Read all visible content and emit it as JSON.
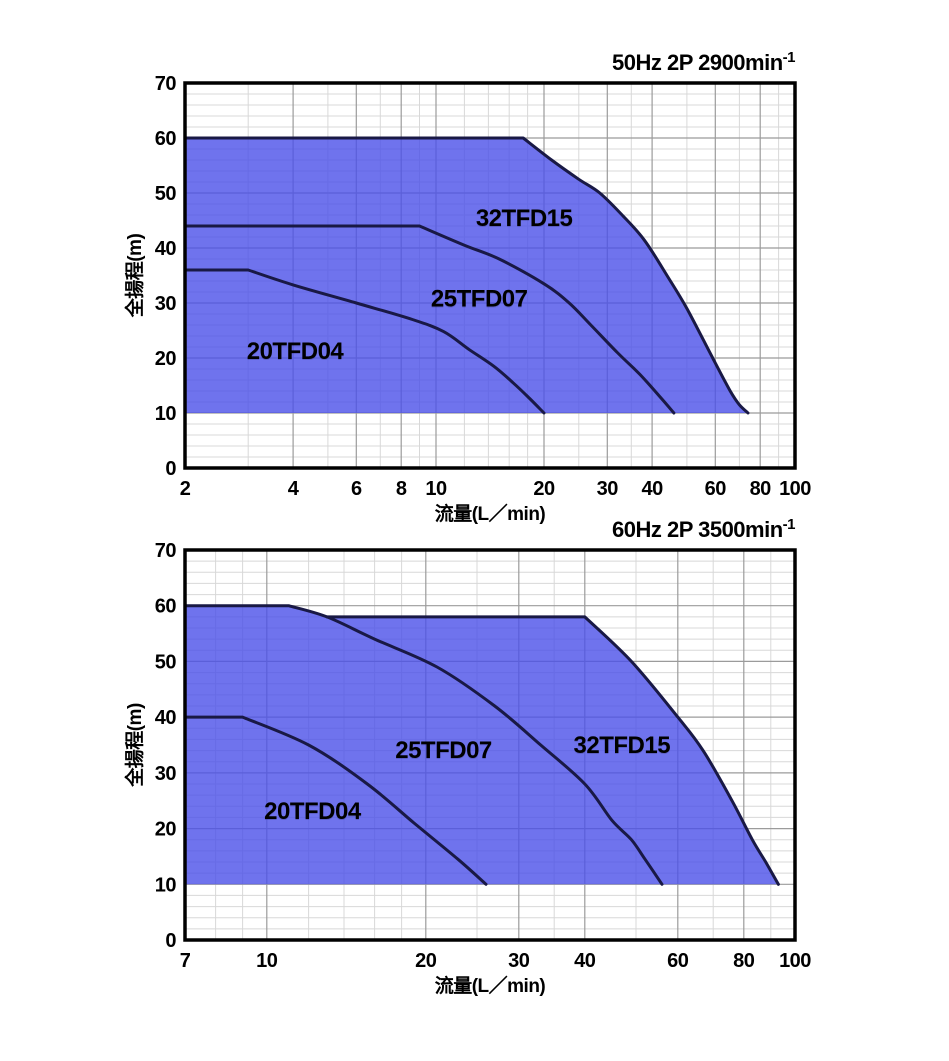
{
  "style": {
    "background": "#ffffff",
    "area_fill": "#4b50e8",
    "area_fill_opacity": 0.8,
    "curve_color": "#191945",
    "axis_color": "#000000",
    "major_grid_color": "#9b9b9b",
    "minor_grid_color": "#d8d8d8",
    "tick_text_color": "#000000",
    "series_label_color": "#ffffff"
  },
  "chart_data": [
    {
      "type": "area",
      "title": "50Hz 2P 2900min",
      "title_sup": "-1",
      "xlabel": "流量(L／min)",
      "ylabel": "全揚程(m)",
      "x_scale": "log",
      "xlim": [
        2,
        100
      ],
      "ylim": [
        0,
        70
      ],
      "x_ticks": [
        2,
        4,
        6,
        8,
        10,
        20,
        30,
        40,
        60,
        80,
        100
      ],
      "x_minor_gridlines": [
        3,
        5,
        7,
        9,
        12,
        14,
        16,
        18,
        25,
        35,
        50,
        70,
        90
      ],
      "y_ticks": [
        0,
        10,
        20,
        30,
        40,
        50,
        60,
        70
      ],
      "y_minor_step": 2,
      "y_tick_step": 10,
      "min_head": 10,
      "fill_region": {
        "straight_until": 1,
        "points": [
          [
            2,
            60
          ],
          [
            17.5,
            60
          ],
          [
            21,
            56
          ],
          [
            25,
            52.5
          ],
          [
            28.6,
            50
          ],
          [
            33,
            46
          ],
          [
            38,
            41.5
          ],
          [
            44,
            35
          ],
          [
            50,
            29
          ],
          [
            59,
            20
          ],
          [
            66,
            14
          ],
          [
            70,
            11.5
          ],
          [
            74,
            10
          ]
        ]
      },
      "series": [
        {
          "name": "32TFD15",
          "label_at": [
            17.6,
            45.6
          ],
          "straight_until": 1,
          "points": [
            [
              2,
              60
            ],
            [
              17.5,
              60
            ],
            [
              21,
              56
            ],
            [
              25,
              52.5
            ],
            [
              28.6,
              50
            ],
            [
              33,
              46
            ],
            [
              38,
              41.5
            ],
            [
              44,
              35
            ],
            [
              50,
              29
            ],
            [
              59,
              20
            ],
            [
              66,
              14
            ],
            [
              70,
              11.5
            ],
            [
              74,
              10
            ]
          ]
        },
        {
          "name": "25TFD07",
          "label_at": [
            13.2,
            31
          ],
          "straight_until": 1,
          "points": [
            [
              2,
              44
            ],
            [
              9,
              44
            ],
            [
              12,
              40.5
            ],
            [
              15,
              38
            ],
            [
              20,
              33.5
            ],
            [
              23.5,
              30
            ],
            [
              27,
              26
            ],
            [
              32,
              21
            ],
            [
              37,
              17
            ],
            [
              42,
              13
            ],
            [
              46,
              10
            ]
          ]
        },
        {
          "name": "20TFD04",
          "label_at": [
            4.05,
            21.5
          ],
          "straight_until": 1,
          "points": [
            [
              2,
              36
            ],
            [
              3,
              36
            ],
            [
              4,
              33.3
            ],
            [
              6,
              30
            ],
            [
              8.6,
              27
            ],
            [
              10.5,
              24.8
            ],
            [
              12.4,
              21.5
            ],
            [
              14.5,
              18.5
            ],
            [
              16.4,
              15.5
            ],
            [
              18,
              13
            ],
            [
              20,
              10
            ]
          ]
        }
      ]
    },
    {
      "type": "area",
      "title": "60Hz 2P 3500min",
      "title_sup": "-1",
      "xlabel": "流量(L／min)",
      "ylabel": "全揚程(m)",
      "x_scale": "log",
      "xlim": [
        7,
        100
      ],
      "ylim": [
        0,
        70
      ],
      "x_ticks": [
        7,
        10,
        20,
        30,
        40,
        60,
        80,
        100
      ],
      "x_minor_gridlines": [
        8,
        9,
        12,
        14,
        16,
        18,
        25,
        35,
        50,
        70,
        90
      ],
      "y_ticks": [
        0,
        10,
        20,
        30,
        40,
        50,
        60,
        70
      ],
      "y_minor_step": 2,
      "y_tick_step": 10,
      "min_head": 10,
      "fill_region": {
        "straight_until": 3,
        "points": [
          [
            7,
            60
          ],
          [
            11,
            60
          ],
          [
            13,
            58
          ],
          [
            40,
            58
          ],
          [
            49,
            50
          ],
          [
            60,
            40
          ],
          [
            67,
            34
          ],
          [
            76,
            25
          ],
          [
            83,
            18
          ],
          [
            88,
            14
          ],
          [
            93,
            10
          ]
        ]
      },
      "series": [
        {
          "name": "32TFD15",
          "label_at": [
            47,
            35.2
          ],
          "straight_until": 1,
          "points": [
            [
              13,
              58
            ],
            [
              40,
              58
            ],
            [
              49,
              50
            ],
            [
              60,
              40
            ],
            [
              67,
              34
            ],
            [
              76,
              25
            ],
            [
              83,
              18
            ],
            [
              88,
              14
            ],
            [
              93,
              10
            ]
          ]
        },
        {
          "name": "25TFD07",
          "label_at": [
            21.6,
            34.3
          ],
          "straight_until": 1,
          "points": [
            [
              7,
              60
            ],
            [
              11,
              60
            ],
            [
              13,
              58
            ],
            [
              16,
              54
            ],
            [
              21,
              49
            ],
            [
              27,
              42
            ],
            [
              33,
              35
            ],
            [
              40,
              28
            ],
            [
              45,
              21.5
            ],
            [
              49,
              18
            ],
            [
              52,
              14.5
            ],
            [
              56,
              10
            ]
          ]
        },
        {
          "name": "20TFD04",
          "label_at": [
            12.2,
            23.3
          ],
          "straight_until": 1,
          "points": [
            [
              7,
              40
            ],
            [
              9,
              40
            ],
            [
              12,
              35
            ],
            [
              15.5,
              28
            ],
            [
              19,
              21
            ],
            [
              23,
              14.5
            ],
            [
              26,
              10
            ]
          ]
        }
      ]
    }
  ]
}
